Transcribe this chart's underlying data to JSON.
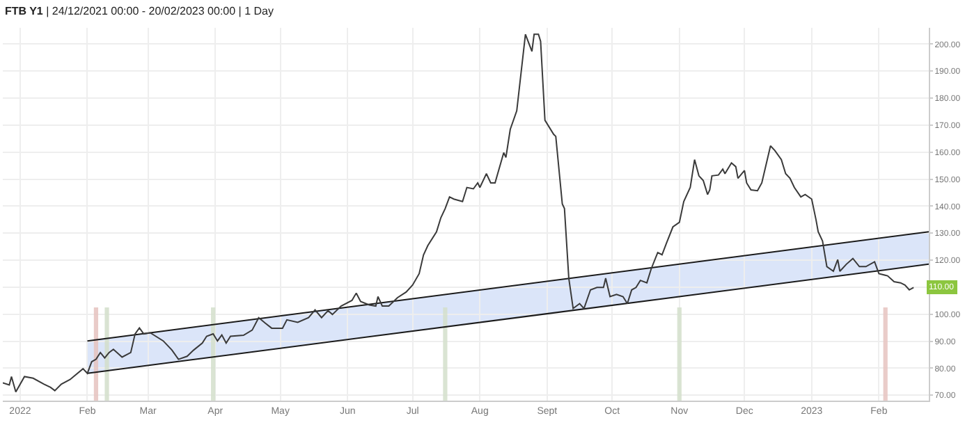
{
  "chart_data": {
    "type": "line",
    "title": "FTB Y1 | 24/12/2021 00:00 - 20/02/2023 00:00 | 1 Day",
    "xlim": [
      "2021-12-24",
      "2023-02-24"
    ],
    "xticks": [
      {
        "value": "2022-01-01",
        "label": "2022"
      },
      {
        "value": "2022-02-01",
        "label": "Feb"
      },
      {
        "value": "2022-03-01",
        "label": "Mar"
      },
      {
        "value": "2022-04-01",
        "label": "Apr"
      },
      {
        "value": "2022-05-01",
        "label": "May"
      },
      {
        "value": "2022-06-01",
        "label": "Jun"
      },
      {
        "value": "2022-07-01",
        "label": "Jul"
      },
      {
        "value": "2022-08-01",
        "label": "Aug"
      },
      {
        "value": "2022-09-01",
        "label": "Sept"
      },
      {
        "value": "2022-10-01",
        "label": "Oct"
      },
      {
        "value": "2022-11-01",
        "label": "Nov"
      },
      {
        "value": "2022-12-01",
        "label": "Dec"
      },
      {
        "value": "2023-01-01",
        "label": "2023"
      },
      {
        "value": "2023-02-01",
        "label": "Feb"
      }
    ],
    "ylim": [
      68,
      206
    ],
    "yticks": [
      {
        "value": 70,
        "label": "70.00"
      },
      {
        "value": 80,
        "label": "80.00"
      },
      {
        "value": 90,
        "label": "90.00"
      },
      {
        "value": 100,
        "label": "100.00"
      },
      {
        "value": 110,
        "label": null
      },
      {
        "value": 120,
        "label": "120.00"
      },
      {
        "value": 130,
        "label": "130.00"
      },
      {
        "value": 140,
        "label": "140.00"
      },
      {
        "value": 150,
        "label": "150.00"
      },
      {
        "value": 160,
        "label": "160.00"
      },
      {
        "value": 170,
        "label": "170.00"
      },
      {
        "value": 180,
        "label": "180.00"
      },
      {
        "value": 190,
        "label": "190.00"
      },
      {
        "value": 200,
        "label": "200.00"
      }
    ],
    "grid": true,
    "marker": "none",
    "line_style": "solid",
    "annotations": [
      {
        "text": "110.00",
        "x": "2023-02-17",
        "y": 110
      }
    ],
    "series": [
      {
        "type": "line",
        "color": "#dbe5f9",
        "x": [
          "2022-02-01",
          "2023-02-24"
        ],
        "values": [
          null,
          null
        ],
        "lower": [
          78.1,
          118.5
        ],
        "upper": [
          90.1,
          130.5
        ]
      },
      {
        "type": "line",
        "color": "#1a1a1a",
        "x": [
          "2022-02-01",
          "2023-02-24"
        ],
        "values": [
          90.1,
          130.5
        ]
      },
      {
        "type": "line",
        "color": "#1a1a1a",
        "x": [
          "2022-02-01",
          "2023-02-24"
        ],
        "values": [
          78.1,
          118.5
        ]
      },
      {
        "type": "bar",
        "color": "#e6c3bf",
        "x": [
          "2022-02-05",
          "2022-02-10",
          "2022-03-31",
          "2022-07-16",
          "2022-11-01",
          "2023-02-04"
        ],
        "values": [
          102.5,
          102.5,
          102.5,
          102.5,
          102.5,
          102.5
        ],
        "colors": [
          "#e6c3bf",
          "#d3dfcb",
          "#d3dfcb",
          "#d3dfcb",
          "#d3dfcb",
          "#e6c3bf"
        ]
      },
      {
        "color": "#3a3a3a",
        "x": [
          "2021-12-24",
          "2021-12-27",
          "2021-12-28",
          "2021-12-30",
          "2022-01-03",
          "2022-01-07",
          "2022-01-12",
          "2022-01-15",
          "2022-01-17",
          "2022-01-20",
          "2022-01-24",
          "2022-01-30",
          "2022-02-01",
          "2022-02-03",
          "2022-02-05",
          "2022-02-07",
          "2022-02-09",
          "2022-02-11",
          "2022-02-13",
          "2022-02-17",
          "2022-02-21",
          "2022-02-23",
          "2022-02-25",
          "2022-02-27",
          "2022-03-02",
          "2022-03-08",
          "2022-03-12",
          "2022-03-15",
          "2022-03-19",
          "2022-03-22",
          "2022-03-26",
          "2022-03-28",
          "2022-03-31",
          "2022-04-02",
          "2022-04-04",
          "2022-04-06",
          "2022-04-08",
          "2022-04-14",
          "2022-04-18",
          "2022-04-21",
          "2022-04-24",
          "2022-04-27",
          "2022-05-02",
          "2022-05-04",
          "2022-05-09",
          "2022-05-14",
          "2022-05-17",
          "2022-05-20",
          "2022-05-23",
          "2022-05-25",
          "2022-05-29",
          "2022-06-03",
          "2022-06-05",
          "2022-06-07",
          "2022-06-11",
          "2022-06-14",
          "2022-06-15",
          "2022-06-17",
          "2022-06-20",
          "2022-06-24",
          "2022-06-28",
          "2022-07-01",
          "2022-07-04",
          "2022-07-06",
          "2022-07-08",
          "2022-07-12",
          "2022-07-14",
          "2022-07-16",
          "2022-07-18",
          "2022-07-20",
          "2022-07-24",
          "2022-07-26",
          "2022-07-29",
          "2022-07-31",
          "2022-08-01",
          "2022-08-04",
          "2022-08-06",
          "2022-08-08",
          "2022-08-12",
          "2022-08-13",
          "2022-08-15",
          "2022-08-18",
          "2022-08-22",
          "2022-08-25",
          "2022-08-26",
          "2022-08-28",
          "2022-08-29",
          "2022-08-31",
          "2022-09-04",
          "2022-09-05",
          "2022-09-08",
          "2022-09-09",
          "2022-09-11",
          "2022-09-13",
          "2022-09-16",
          "2022-09-18",
          "2022-09-21",
          "2022-09-24",
          "2022-09-27",
          "2022-09-28",
          "2022-09-30",
          "2022-10-03",
          "2022-10-06",
          "2022-10-08",
          "2022-10-10",
          "2022-10-12",
          "2022-10-14",
          "2022-10-17",
          "2022-10-19",
          "2022-10-22",
          "2022-10-24",
          "2022-10-26",
          "2022-10-29",
          "2022-11-01",
          "2022-11-03",
          "2022-11-06",
          "2022-11-08",
          "2022-11-10",
          "2022-11-12",
          "2022-11-14",
          "2022-11-15",
          "2022-11-16",
          "2022-11-19",
          "2022-11-21",
          "2022-11-22",
          "2022-11-25",
          "2022-11-27",
          "2022-11-28",
          "2022-12-01",
          "2022-12-02",
          "2022-12-04",
          "2022-12-07",
          "2022-12-09",
          "2022-12-13",
          "2022-12-15",
          "2022-12-18",
          "2022-12-20",
          "2022-12-22",
          "2022-12-24",
          "2022-12-27",
          "2022-12-29",
          "2023-01-01",
          "2023-01-03",
          "2023-01-04",
          "2023-01-06",
          "2023-01-08",
          "2023-01-11",
          "2023-01-13",
          "2023-01-14",
          "2023-01-17",
          "2023-01-20",
          "2023-01-23",
          "2023-01-26",
          "2023-01-30",
          "2023-02-01",
          "2023-02-05",
          "2023-02-08",
          "2023-02-11",
          "2023-02-13",
          "2023-02-15",
          "2023-02-17"
        ],
        "values": [
          74.6,
          73.8,
          76.9,
          71.2,
          76.9,
          76.3,
          74.1,
          72.9,
          71.7,
          74.1,
          75.8,
          79.8,
          78.1,
          82.4,
          83.3,
          85.8,
          83.8,
          85.8,
          87,
          84.1,
          85.8,
          92.7,
          94.9,
          92.7,
          93.1,
          90.1,
          86.7,
          83.3,
          84.4,
          86.7,
          89.3,
          91.8,
          92.7,
          90.1,
          92.3,
          89.3,
          91.8,
          92.2,
          94.1,
          98.7,
          96.7,
          94.8,
          94.8,
          97.9,
          97,
          98.7,
          101.6,
          98.7,
          101.3,
          99.9,
          103,
          105.1,
          107.8,
          104.7,
          103.4,
          103,
          106.5,
          103,
          103,
          106.1,
          108.2,
          110.8,
          115,
          121.9,
          125.4,
          130.5,
          135.7,
          139.1,
          143.4,
          142.6,
          141.7,
          146.9,
          146.4,
          148.6,
          146.9,
          152,
          148.6,
          148.6,
          159.8,
          158,
          168.4,
          175.3,
          203.6,
          197.3,
          203.6,
          203.6,
          201,
          171.8,
          166.6,
          165.8,
          140.8,
          139.1,
          113.3,
          102.1,
          103.9,
          102.1,
          109,
          109.9,
          109.9,
          113.3,
          106.5,
          107.3,
          106.5,
          103.9,
          109,
          109.9,
          112.5,
          111.6,
          116.8,
          122.8,
          122,
          126.2,
          132.3,
          134,
          141.7,
          146.9,
          157.2,
          151.2,
          149.5,
          144.3,
          146,
          151.2,
          151.5,
          153.7,
          152,
          156,
          154.6,
          150.3,
          153.2,
          148.6,
          146,
          145.7,
          148.6,
          162.3,
          160.6,
          157.2,
          152,
          150.3,
          146.9,
          143.4,
          144.3,
          142.6,
          134.9,
          130.5,
          127.1,
          117.6,
          115.9,
          120.2,
          115.9,
          118.5,
          120.6,
          117.6,
          117.6,
          119.4,
          115,
          114.2,
          112,
          111.6,
          110.8,
          109,
          109.9
        ]
      }
    ]
  }
}
